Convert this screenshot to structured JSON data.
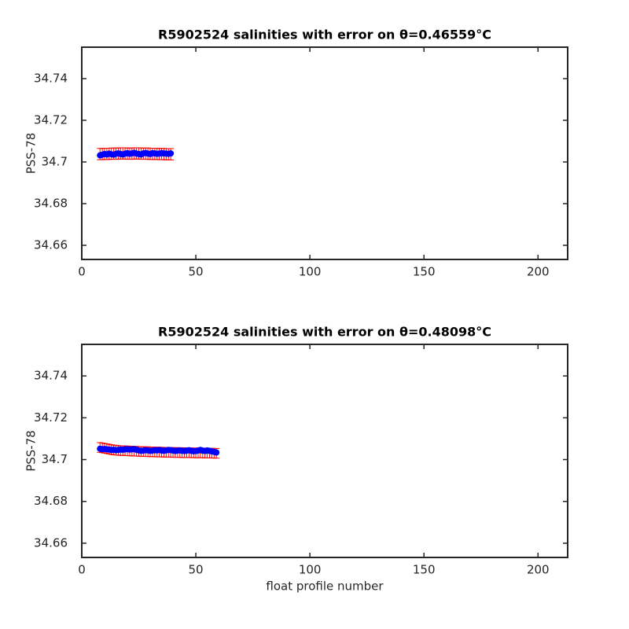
{
  "chart_data": [
    {
      "type": "line",
      "title": "R5902524 salinities with error on θ=0.46559°C",
      "ylabel": "PSS-78",
      "x": [
        8,
        9,
        10,
        11,
        12,
        13,
        14,
        15,
        16,
        17,
        18,
        19,
        20,
        21,
        22,
        23,
        24,
        25,
        26,
        27,
        28,
        29,
        30,
        31,
        32,
        33,
        34,
        35,
        36,
        37,
        38,
        39
      ],
      "series": [
        {
          "color": "#00cc00",
          "values": [
            34.7038,
            34.7038,
            34.7039,
            34.7039,
            34.7039,
            34.704,
            34.704,
            34.704,
            34.704,
            34.7041,
            34.7041,
            34.7041,
            34.704,
            34.704,
            34.704,
            34.7041,
            34.7041,
            34.7041,
            34.704,
            34.704,
            34.704,
            34.704,
            34.7039,
            34.7039,
            34.7039,
            34.7039,
            34.7038,
            34.7038,
            34.7038,
            34.7037,
            34.7037,
            34.7037
          ]
        },
        {
          "color": "#0000ff",
          "values": [
            34.7032,
            34.7035,
            34.7038,
            34.7036,
            34.704,
            34.7037,
            34.7035,
            34.7039,
            34.7041,
            34.7038,
            34.7036,
            34.704,
            34.7042,
            34.7039,
            34.7041,
            34.7044,
            34.704,
            34.7038,
            34.7036,
            34.7041,
            34.7043,
            34.704,
            34.7038,
            34.7042,
            34.7041,
            34.7039,
            34.704,
            34.7042,
            34.7041,
            34.704,
            34.7039,
            34.7041
          ]
        }
      ],
      "error": 0.0027,
      "error_color": "#ff0000",
      "xlim": [
        0,
        213
      ],
      "ylim": [
        34.6532,
        34.7551
      ],
      "xticks": [
        0,
        50,
        100,
        150,
        200
      ],
      "yticks": [
        34.66,
        34.68,
        34.7,
        34.72,
        34.74
      ]
    },
    {
      "type": "line",
      "title": "R5902524 salinities with error on θ=0.48098°C",
      "ylabel": "PSS-78",
      "xlabel": "float profile number",
      "x": [
        8,
        9,
        10,
        11,
        12,
        13,
        14,
        15,
        16,
        17,
        18,
        19,
        20,
        21,
        22,
        23,
        24,
        25,
        26,
        27,
        28,
        29,
        30,
        31,
        32,
        33,
        34,
        35,
        36,
        37,
        38,
        39,
        40,
        41,
        42,
        43,
        44,
        45,
        46,
        47,
        48,
        49,
        50,
        51,
        52,
        53,
        54,
        55,
        56,
        57,
        58,
        59
      ],
      "series": [
        {
          "color": "#00cc00",
          "values": [
            34.7058,
            34.7056,
            34.7054,
            34.7052,
            34.705,
            34.7048,
            34.7046,
            34.7045,
            34.7044,
            34.7043,
            34.7043,
            34.7042,
            34.7042,
            34.7041,
            34.7041,
            34.704,
            34.704,
            34.7039,
            34.7039,
            34.7038,
            34.7038,
            34.7038,
            34.7037,
            34.7037,
            34.7037,
            34.7036,
            34.7036,
            34.7036,
            34.7035,
            34.7035,
            34.7035,
            34.7035,
            34.7034,
            34.7034,
            34.7034,
            34.7034,
            34.7033,
            34.7033,
            34.7033,
            34.7033,
            34.7033,
            34.7032,
            34.7032,
            34.7032,
            34.7032,
            34.7032,
            34.7031,
            34.7031,
            34.7031,
            34.7031,
            34.703,
            34.703
          ]
        },
        {
          "color": "#0000ff",
          "values": [
            34.7052,
            34.705,
            34.7051,
            34.7049,
            34.7048,
            34.7046,
            34.7047,
            34.7045,
            34.7046,
            34.7048,
            34.7047,
            34.7049,
            34.705,
            34.7048,
            34.7049,
            34.705,
            34.7047,
            34.7044,
            34.7042,
            34.7043,
            34.7045,
            34.7044,
            34.7042,
            34.7043,
            34.7045,
            34.7044,
            34.7046,
            34.7043,
            34.7042,
            34.7044,
            34.7046,
            34.7045,
            34.7043,
            34.7041,
            34.7043,
            34.7044,
            34.7042,
            34.7041,
            34.7043,
            34.7045,
            34.7042,
            34.704,
            34.7041,
            34.7044,
            34.7046,
            34.7043,
            34.7041,
            34.7044,
            34.7042,
            34.7039,
            34.7037,
            34.7034
          ]
        }
      ],
      "error": 0.0023,
      "error_color": "#ff0000",
      "xlim": [
        0,
        213
      ],
      "ylim": [
        34.6532,
        34.7551
      ],
      "xticks": [
        0,
        50,
        100,
        150,
        200
      ],
      "yticks": [
        34.66,
        34.68,
        34.7,
        34.72,
        34.74
      ]
    }
  ]
}
